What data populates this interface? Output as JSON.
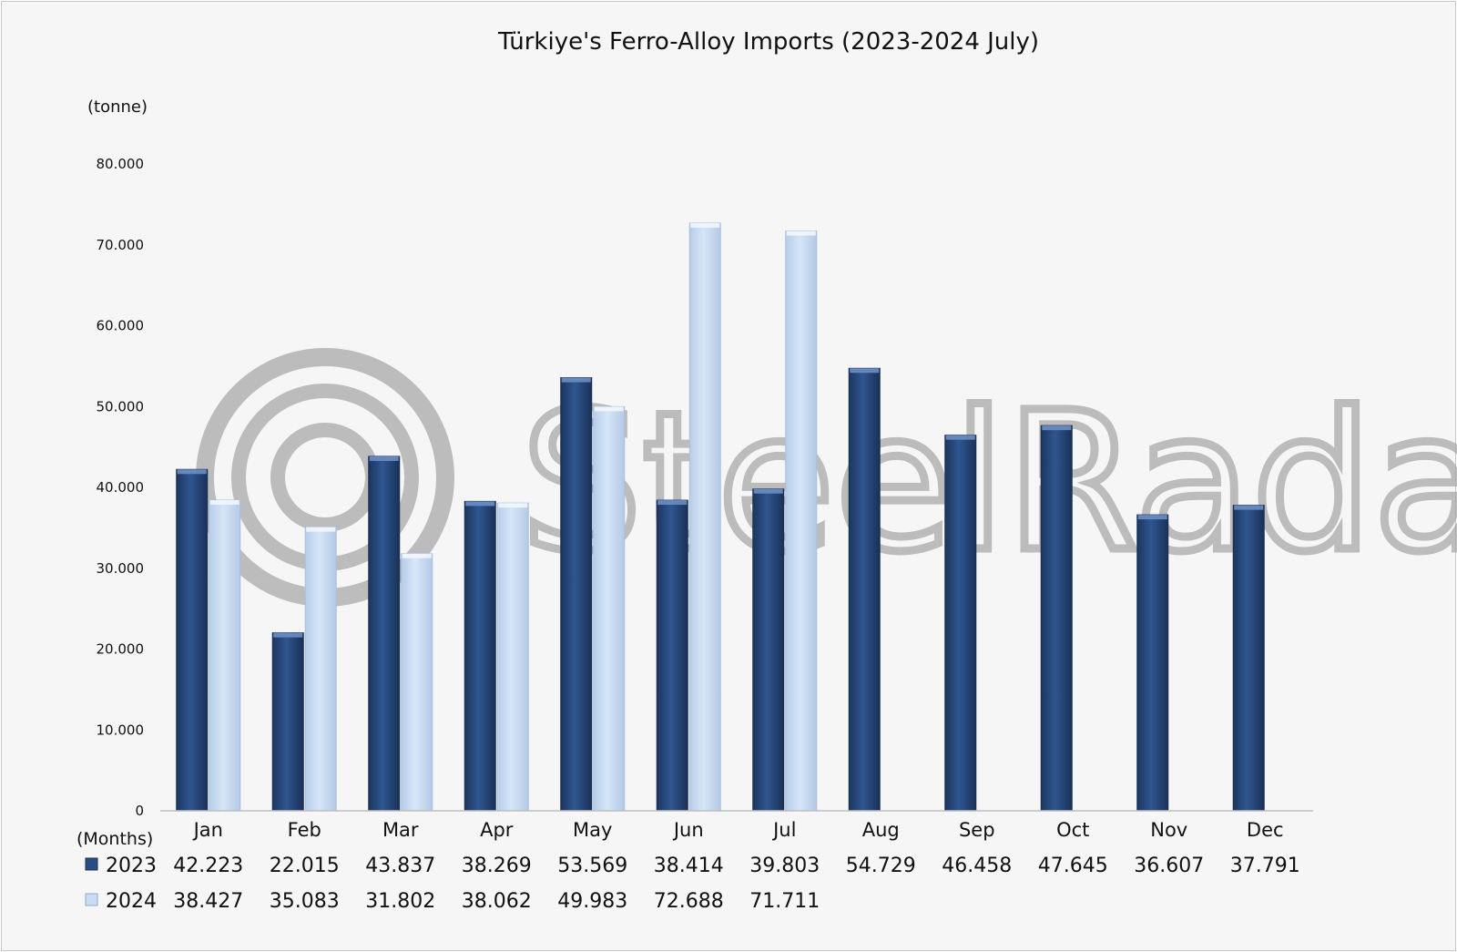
{
  "chart_data": {
    "type": "bar",
    "title": "Türkiye's Ferro-Alloy Imports (2023-2024 July)",
    "ylabel": "(tonne)",
    "xlabel": "(Months)",
    "ylim": [
      0,
      80000
    ],
    "yticks": [
      {
        "value": 0,
        "label": "0"
      },
      {
        "value": 10000,
        "label": "10.000"
      },
      {
        "value": 20000,
        "label": "20.000"
      },
      {
        "value": 30000,
        "label": "30.000"
      },
      {
        "value": 40000,
        "label": "40.000"
      },
      {
        "value": 50000,
        "label": "50.000"
      },
      {
        "value": 60000,
        "label": "60.000"
      },
      {
        "value": 70000,
        "label": "70.000"
      },
      {
        "value": 80000,
        "label": "80.000"
      }
    ],
    "categories": [
      "Jan",
      "Feb",
      "Mar",
      "Apr",
      "May",
      "Jun",
      "Jul",
      "Aug",
      "Sep",
      "Oct",
      "Nov",
      "Dec"
    ],
    "series": [
      {
        "name": "2023",
        "color": "#2a4c82",
        "values": [
          42223,
          22015,
          43837,
          38269,
          53569,
          38414,
          39803,
          54729,
          46458,
          47645,
          36607,
          37791
        ],
        "labels": [
          "42.223",
          "22.015",
          "43.837",
          "38.269",
          "53.569",
          "38.414",
          "39.803",
          "54.729",
          "46.458",
          "47.645",
          "36.607",
          "37.791"
        ]
      },
      {
        "name": "2024",
        "color": "#c8dcf4",
        "values": [
          38427,
          35083,
          31802,
          38062,
          49983,
          72688,
          71711,
          null,
          null,
          null,
          null,
          null
        ],
        "labels": [
          "38.427",
          "35.083",
          "31.802",
          "38.062",
          "49.983",
          "72.688",
          "71.711",
          "",
          "",
          "",
          "",
          ""
        ]
      }
    ],
    "grid": false,
    "legend": "data-table-left"
  },
  "watermark": {
    "text": "SteelRadar"
  }
}
